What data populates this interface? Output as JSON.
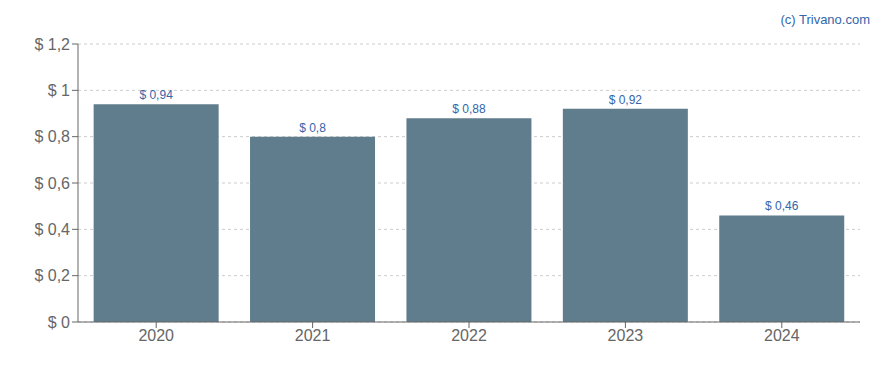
{
  "chart_data": {
    "type": "bar",
    "categories": [
      "2020",
      "2021",
      "2022",
      "2023",
      "2024"
    ],
    "values": [
      0.94,
      0.8,
      0.88,
      0.92,
      0.46
    ],
    "value_labels": [
      "$ 0,94",
      "$ 0,8",
      "$ 0,88",
      "$ 0,92",
      "$ 0,46"
    ],
    "data_labels": true,
    "color": "#5f7d8c",
    "ylim": [
      0,
      1.2
    ],
    "yticks": [
      {
        "value": 0,
        "label": "$ 0"
      },
      {
        "value": 0.2,
        "label": "$ 0,2"
      },
      {
        "value": 0.4,
        "label": "$ 0,4"
      },
      {
        "value": 0.6,
        "label": "$ 0,6"
      },
      {
        "value": 0.8,
        "label": "$ 0,8"
      },
      {
        "value": 1.0,
        "label": "$ 1"
      },
      {
        "value": 1.2,
        "label": "$ 1,2"
      }
    ],
    "grid": true,
    "annotations": [
      "(c) Trivano.com"
    ]
  }
}
